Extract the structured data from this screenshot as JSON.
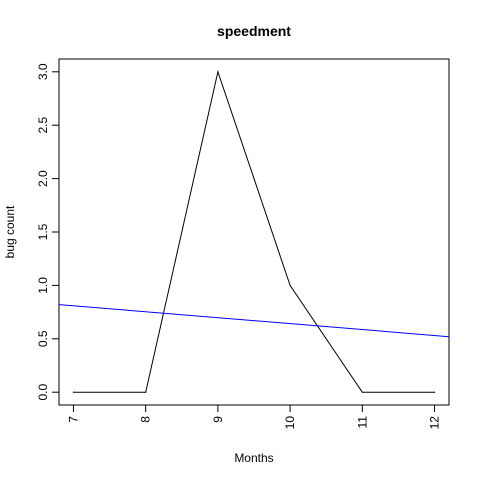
{
  "chart_data": {
    "type": "line",
    "title": "speedment",
    "xlabel": "Months",
    "ylabel": "bug count",
    "xlim": [
      6.8,
      12.2
    ],
    "ylim": [
      -0.12,
      3.12
    ],
    "x_ticks": [
      "7",
      "8",
      "9",
      "10",
      "11",
      "12"
    ],
    "y_ticks": [
      "0.0",
      "0.5",
      "1.0",
      "1.5",
      "2.0",
      "2.5",
      "3.0"
    ],
    "grid": false,
    "legend": "none",
    "series": [
      {
        "color": "#000000",
        "x": [
          7,
          8,
          9,
          10,
          11,
          12
        ],
        "y": [
          0,
          0,
          3,
          1,
          0,
          0
        ]
      },
      {
        "kind": "trend-line",
        "color": "#0000ff",
        "x": [
          6.8,
          12.2
        ],
        "y": [
          0.82,
          0.52
        ]
      }
    ]
  }
}
